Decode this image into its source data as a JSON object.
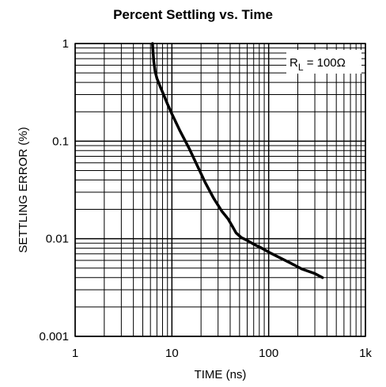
{
  "chart_data": {
    "type": "line",
    "title": "Percent Settling vs. Time",
    "xlabel": "TIME (ns)",
    "ylabel": "SETTLING ERROR (%)",
    "xscale": "log",
    "yscale": "log",
    "xlim": [
      1,
      1000
    ],
    "ylim": [
      0.001,
      1
    ],
    "grid": true,
    "x_ticks": [
      {
        "value": 1,
        "label": "1"
      },
      {
        "value": 10,
        "label": "10"
      },
      {
        "value": 100,
        "label": "100"
      },
      {
        "value": 1000,
        "label": "1k"
      }
    ],
    "y_ticks": [
      {
        "value": 1,
        "label": "1"
      },
      {
        "value": 0.1,
        "label": "0.1"
      },
      {
        "value": 0.01,
        "label": "0.01"
      },
      {
        "value": 0.001,
        "label": "0.001"
      }
    ],
    "annotation": {
      "main": "R",
      "sub": "L",
      "rest": " = 100Ω"
    },
    "series": [
      {
        "x": [
          6.3,
          6.4,
          6.5,
          6.7,
          7.0,
          7.5,
          8.2,
          9.0,
          10,
          12,
          15,
          18,
          22,
          27,
          33,
          38,
          42,
          46,
          52,
          60,
          70,
          85,
          100,
          130,
          170,
          220,
          300,
          360
        ],
        "y": [
          1.0,
          0.8,
          0.65,
          0.52,
          0.44,
          0.37,
          0.3,
          0.24,
          0.19,
          0.13,
          0.085,
          0.058,
          0.038,
          0.026,
          0.019,
          0.016,
          0.0135,
          0.0115,
          0.0103,
          0.0096,
          0.0088,
          0.008,
          0.0073,
          0.0064,
          0.0056,
          0.0049,
          0.0044,
          0.004
        ]
      }
    ]
  }
}
